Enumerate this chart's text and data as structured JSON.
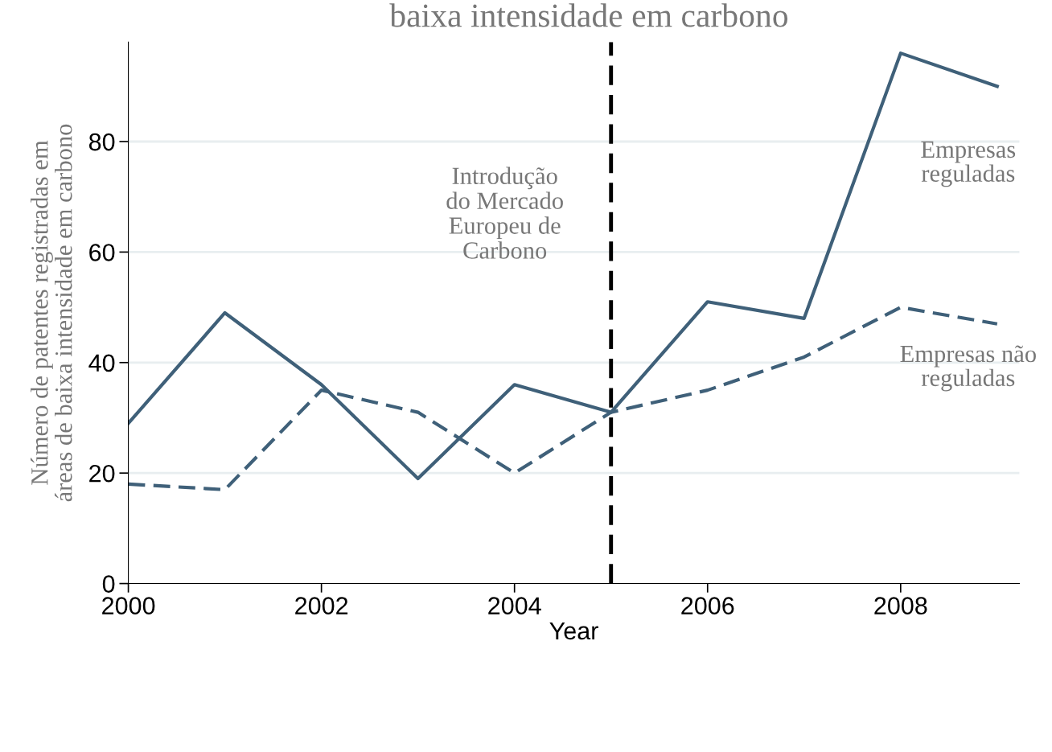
{
  "chart_data": {
    "type": "line",
    "title": "baixa intensidade em carbono",
    "xlabel": "Year",
    "ylabel": "Número de patentes registradas em\náreas de baixa intensidade em carbono",
    "x": [
      2000,
      2001,
      2002,
      2003,
      2004,
      2005,
      2006,
      2007,
      2008,
      2009
    ],
    "series": [
      {
        "name": "Empresas\nreguladas",
        "color": "#3f6079",
        "line_style": "solid",
        "values": [
          29,
          49,
          36,
          19,
          36,
          31,
          51,
          48,
          96,
          90
        ]
      },
      {
        "name": "Empresas não\nreguladas",
        "color": "#3f6079",
        "line_style": "dashed",
        "values": [
          18,
          17,
          35,
          31,
          20,
          31,
          35,
          41,
          50,
          47
        ]
      }
    ],
    "ref_lines": [
      {
        "axis": "x",
        "value": 2005,
        "label": "Introdução\ndo Mercado\nEuropeu de\nCarbono",
        "color": "#000000",
        "line_style": "dashed"
      }
    ],
    "xlim": [
      2000,
      2009.23
    ],
    "xticks": [
      2000,
      2002,
      2004,
      2006,
      2008
    ],
    "ylim": [
      0,
      98
    ],
    "yticks": [
      0,
      20,
      40,
      60,
      80
    ],
    "grid": "y",
    "legend": false,
    "marker": "none"
  }
}
